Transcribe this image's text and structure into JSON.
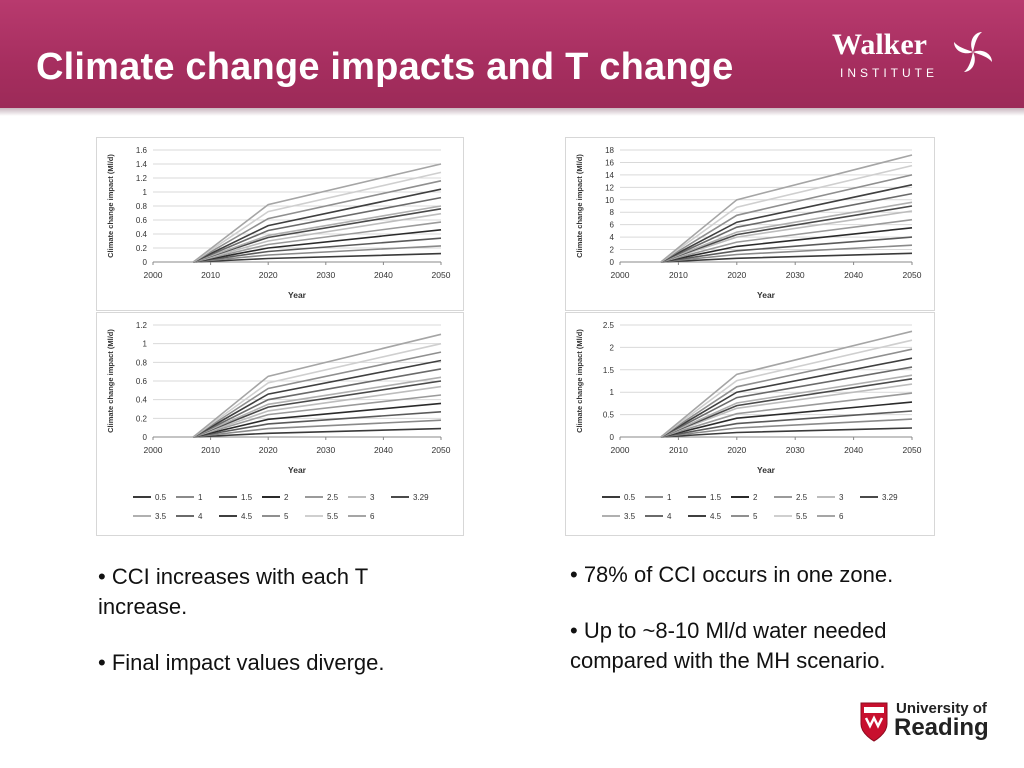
{
  "slide": {
    "title": "Climate change impacts and T change",
    "logo_top": {
      "line1": "Walker",
      "line2": "INSTITUTE"
    },
    "logo_bottom": {
      "line1": "University of",
      "line2": "Reading"
    },
    "colors": {
      "banner": "#a62e5f",
      "title_text": "#ffffff"
    }
  },
  "bullets_left": [
    "• CCI increases with each T increase.",
    "• Final impact values diverge."
  ],
  "bullets_right": [
    "• 78% of CCI occurs in one zone.",
    "• Up to ~8-10 Ml/d water needed compared with the MH scenario."
  ],
  "chart_data": [
    {
      "type": "line",
      "xlabel": "Year",
      "ylabel": "Climate change impact (Ml/d)",
      "xlim": [
        2000,
        2050
      ],
      "x_ticks": [
        2000,
        2010,
        2020,
        2030,
        2040,
        2050
      ],
      "ylim": [
        0,
        1.6
      ],
      "y_ticks": [
        "0",
        "0.2",
        "0.4",
        "0.6",
        "0.8",
        "1",
        "1.2",
        "1.4",
        "1.6"
      ],
      "series_final_2050": [
        0.12,
        0.23,
        0.34,
        0.46,
        0.57,
        0.69,
        0.76,
        0.8,
        0.92,
        1.04,
        1.16,
        1.28,
        1.4
      ],
      "series_2020": [
        0.05,
        0.1,
        0.15,
        0.2,
        0.25,
        0.3,
        0.35,
        0.38,
        0.45,
        0.52,
        0.62,
        0.72,
        0.82
      ],
      "grid": true,
      "legend": []
    },
    {
      "type": "line",
      "xlabel": "Year",
      "ylabel": "Climate change impact (Ml/d)",
      "xlim": [
        2000,
        2050
      ],
      "x_ticks": [
        2000,
        2010,
        2020,
        2030,
        2040,
        2050
      ],
      "ylim": [
        0,
        18
      ],
      "y_ticks": [
        "0",
        "2",
        "4",
        "6",
        "8",
        "10",
        "12",
        "14",
        "16",
        "18"
      ],
      "series_final_2050": [
        1.4,
        2.7,
        4.0,
        5.5,
        6.8,
        8.2,
        9.0,
        9.6,
        11.0,
        12.4,
        14.0,
        15.5,
        17.2
      ],
      "series_2020": [
        0.6,
        1.2,
        1.8,
        2.5,
        3.2,
        4.0,
        4.4,
        4.8,
        5.6,
        6.4,
        7.5,
        8.8,
        10.0
      ],
      "grid": true,
      "legend": []
    },
    {
      "type": "line",
      "xlabel": "Year",
      "ylabel": "Climate change impact (Ml/d)",
      "xlim": [
        2000,
        2050
      ],
      "x_ticks": [
        2000,
        2010,
        2020,
        2030,
        2040,
        2050
      ],
      "ylim": [
        0,
        1.2
      ],
      "y_ticks": [
        "0",
        "0.2",
        "0.4",
        "0.6",
        "0.8",
        "1",
        "1.2"
      ],
      "series_final_2050": [
        0.09,
        0.18,
        0.27,
        0.36,
        0.45,
        0.54,
        0.6,
        0.64,
        0.73,
        0.82,
        0.91,
        1.0,
        1.1
      ],
      "series_2020": [
        0.04,
        0.09,
        0.14,
        0.19,
        0.24,
        0.28,
        0.32,
        0.35,
        0.4,
        0.46,
        0.52,
        0.58,
        0.65
      ],
      "grid": true,
      "legend": [
        "0.5",
        "1",
        "1.5",
        "2",
        "2.5",
        "3",
        "3.29",
        "3.5",
        "4",
        "4.5",
        "5",
        "5.5",
        "6"
      ]
    },
    {
      "type": "line",
      "xlabel": "Year",
      "ylabel": "Climate change impact (Ml/d)",
      "xlim": [
        2000,
        2050
      ],
      "x_ticks": [
        2000,
        2010,
        2020,
        2030,
        2040,
        2050
      ],
      "ylim": [
        0,
        2.5
      ],
      "y_ticks": [
        "0",
        "0.5",
        "1",
        "1.5",
        "2",
        "2.5"
      ],
      "series_final_2050": [
        0.2,
        0.4,
        0.58,
        0.78,
        0.98,
        1.18,
        1.3,
        1.38,
        1.56,
        1.76,
        1.96,
        2.16,
        2.36
      ],
      "series_2020": [
        0.1,
        0.2,
        0.3,
        0.42,
        0.52,
        0.64,
        0.7,
        0.76,
        0.88,
        1.0,
        1.12,
        1.26,
        1.4
      ],
      "grid": true,
      "legend": [
        "0.5",
        "1",
        "1.5",
        "2",
        "2.5",
        "3",
        "3.29",
        "3.5",
        "4",
        "4.5",
        "5",
        "5.5",
        "6"
      ]
    }
  ]
}
